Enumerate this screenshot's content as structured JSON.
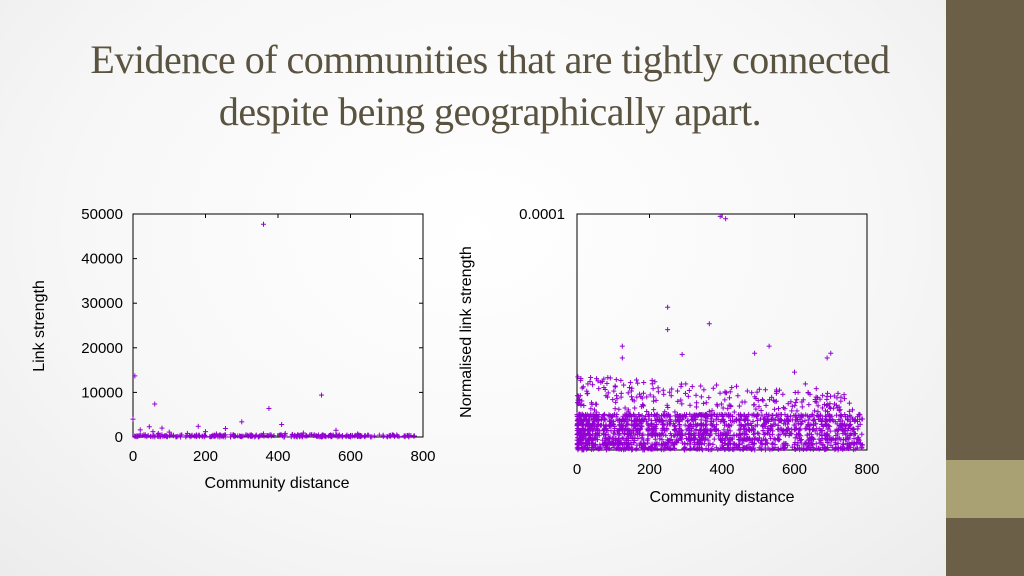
{
  "slide": {
    "title": "Evidence of communities that are tightly connected despite being geographically apart.",
    "colors": {
      "sidebar": "#6b5f48",
      "accent": "#a9a074",
      "title": "#5a5340",
      "points": "#9400d3"
    }
  },
  "chart_data": [
    {
      "type": "scatter",
      "xlabel": "Community distance",
      "ylabel": "Link strength",
      "xlim": [
        0,
        800
      ],
      "ylim": [
        0,
        50000
      ],
      "x_ticks": [
        "0",
        "200",
        "400",
        "600",
        "800"
      ],
      "y_ticks": [
        "0",
        "10000",
        "20000",
        "30000",
        "40000",
        "50000"
      ],
      "marker": "+",
      "points": [
        [
          360,
          47700
        ],
        [
          5,
          13700
        ],
        [
          45,
          2300
        ],
        [
          55,
          1200
        ],
        [
          60,
          7400
        ],
        [
          70,
          800
        ],
        [
          80,
          2000
        ],
        [
          100,
          1100
        ],
        [
          150,
          800
        ],
        [
          180,
          2400
        ],
        [
          230,
          700
        ],
        [
          255,
          1900
        ],
        [
          300,
          3400
        ],
        [
          360,
          700
        ],
        [
          375,
          6400
        ],
        [
          410,
          2800
        ],
        [
          420,
          800
        ],
        [
          520,
          9400
        ],
        [
          560,
          1500
        ],
        [
          620,
          700
        ],
        [
          0,
          4000
        ],
        [
          20,
          1600
        ],
        [
          200,
          1200
        ],
        [
          470,
          900
        ],
        [
          690,
          400
        ],
        [
          30,
          500
        ],
        [
          90,
          300
        ],
        [
          130,
          400
        ],
        [
          270,
          500
        ],
        [
          330,
          300
        ],
        [
          440,
          600
        ],
        [
          500,
          500
        ],
        [
          590,
          300
        ],
        [
          650,
          400
        ],
        [
          730,
          200
        ]
      ],
      "baseline": {
        "x_range": [
          0,
          780
        ],
        "y_max": 500,
        "count": 260
      }
    },
    {
      "type": "scatter",
      "xlabel": "Community distance",
      "ylabel": "Normalised link strength",
      "xlim": [
        0,
        800
      ],
      "ylim": [
        0,
        0.0001
      ],
      "x_ticks": [
        "0",
        "200",
        "400",
        "600",
        "800"
      ],
      "y_ticks": [
        "0.0001"
      ],
      "marker": "+",
      "points": [
        [
          410,
          9.8e-05
        ],
        [
          395,
          9.9e-05
        ],
        [
          250,
          6.05e-05
        ],
        [
          250,
          5.1e-05
        ],
        [
          365,
          5.35e-05
        ],
        [
          125,
          4.4e-05
        ],
        [
          290,
          4.05e-05
        ],
        [
          530,
          4.4e-05
        ],
        [
          490,
          4.1e-05
        ],
        [
          700,
          4.1e-05
        ],
        [
          690,
          3.9e-05
        ],
        [
          125,
          3.9e-05
        ],
        [
          10,
          2.95e-05
        ],
        [
          30,
          2.8e-05
        ],
        [
          60,
          2.6e-05
        ],
        [
          150,
          2.5e-05
        ],
        [
          210,
          2.6e-05
        ],
        [
          300,
          2.8e-05
        ],
        [
          350,
          2.55e-05
        ],
        [
          440,
          2.7e-05
        ],
        [
          600,
          3.3e-05
        ],
        [
          630,
          2.8e-05
        ],
        [
          660,
          2.6e-05
        ],
        [
          720,
          2.4e-05
        ],
        [
          760,
          1.7e-05
        ],
        [
          780,
          1.3e-05
        ],
        [
          550,
          2.4e-05
        ],
        [
          500,
          2.1e-05
        ],
        [
          420,
          1.9e-05
        ],
        [
          260,
          2.3e-05
        ],
        [
          180,
          2.2e-05
        ],
        [
          80,
          2.3e-05
        ],
        [
          40,
          2e-05
        ],
        [
          330,
          2e-05
        ],
        [
          470,
          2.5e-05
        ]
      ],
      "dense_band": {
        "x_range": [
          0,
          790
        ],
        "y_range": [
          0,
          1.6e-05
        ],
        "count": 1700
      }
    }
  ]
}
